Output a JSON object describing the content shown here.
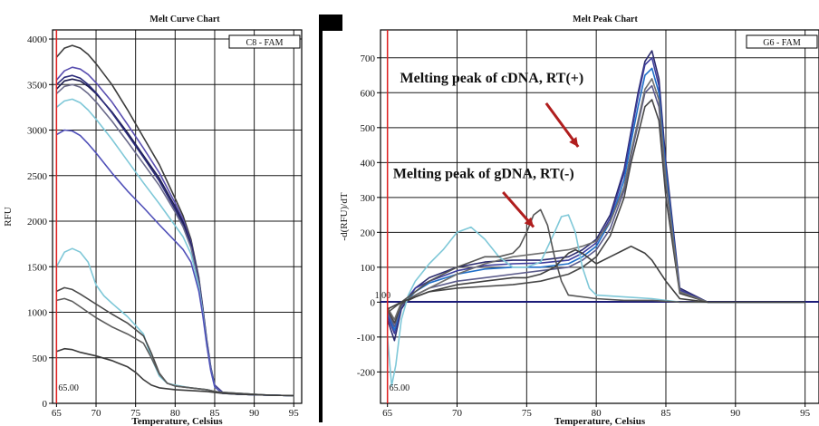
{
  "chart_data": [
    {
      "type": "line",
      "title": "Melt Curve Chart",
      "xlabel": "Temperature, Celsius",
      "ylabel": "RFU",
      "legend_label": "C8 - FAM",
      "marker_label": "65.00",
      "marker_x": 65,
      "xlim": [
        64.5,
        96
      ],
      "ylim": [
        0,
        4100
      ],
      "x_ticks": [
        65,
        70,
        75,
        80,
        85,
        90,
        95
      ],
      "y_ticks": [
        0,
        500,
        1000,
        1500,
        2000,
        2500,
        3000,
        3500,
        4000
      ],
      "grid": true,
      "series": [
        {
          "color": "#3c3c3c",
          "x": [
            65,
            66,
            67,
            68,
            69,
            70,
            72,
            74,
            76,
            78,
            80,
            81,
            82,
            83,
            83.5,
            84,
            84.5,
            85,
            86,
            88,
            90,
            92,
            95
          ],
          "y": [
            3800,
            3900,
            3930,
            3900,
            3830,
            3730,
            3500,
            3220,
            2920,
            2620,
            2250,
            2060,
            1800,
            1380,
            1050,
            700,
            400,
            200,
            120,
            100,
            95,
            90,
            85
          ]
        },
        {
          "color": "#5a4fb0",
          "x": [
            65,
            66,
            67,
            68,
            69,
            70,
            72,
            74,
            76,
            78,
            80,
            81,
            82,
            83,
            83.5,
            84,
            84.5,
            85,
            86,
            88,
            90,
            92,
            95
          ],
          "y": [
            3550,
            3650,
            3690,
            3670,
            3610,
            3520,
            3310,
            3060,
            2800,
            2530,
            2200,
            2020,
            1770,
            1360,
            1040,
            690,
            400,
            200,
            120,
            100,
            95,
            90,
            85
          ]
        },
        {
          "color": "#1e1e50",
          "x": [
            65,
            66,
            67,
            68,
            69,
            70,
            72,
            74,
            76,
            78,
            80,
            81,
            82,
            83,
            83.5,
            84,
            84.5,
            85,
            86,
            88,
            90,
            92,
            95
          ],
          "y": [
            3450,
            3540,
            3560,
            3540,
            3480,
            3400,
            3200,
            2970,
            2720,
            2470,
            2160,
            1990,
            1750,
            1340,
            1030,
            680,
            390,
            190,
            115,
            100,
            95,
            90,
            85
          ]
        },
        {
          "color": "#2b2b7a",
          "x": [
            65,
            66,
            67,
            68,
            69,
            70,
            72,
            74,
            76,
            78,
            80,
            81,
            82,
            83,
            83.5,
            84,
            84.5,
            85,
            86,
            88,
            90,
            92,
            95
          ],
          "y": [
            3500,
            3580,
            3600,
            3570,
            3500,
            3410,
            3190,
            2950,
            2700,
            2440,
            2130,
            1960,
            1730,
            1330,
            1020,
            670,
            390,
            190,
            115,
            100,
            95,
            90,
            85
          ]
        },
        {
          "color": "#6a6a8a",
          "x": [
            65,
            66,
            67,
            68,
            69,
            70,
            72,
            74,
            76,
            78,
            80,
            81,
            82,
            83,
            83.5,
            84,
            84.5,
            85,
            86,
            88,
            90,
            92,
            95
          ],
          "y": [
            3400,
            3480,
            3500,
            3470,
            3400,
            3310,
            3100,
            2870,
            2630,
            2390,
            2100,
            1940,
            1710,
            1320,
            1010,
            660,
            380,
            185,
            110,
            100,
            95,
            90,
            85
          ]
        },
        {
          "color": "#7fc8d8",
          "x": [
            65,
            66,
            67,
            68,
            69,
            70,
            72,
            74,
            76,
            78,
            80,
            81,
            82,
            83,
            83.5,
            84,
            84.5,
            85,
            86,
            88,
            90,
            92,
            95
          ],
          "y": [
            3250,
            3320,
            3340,
            3300,
            3220,
            3120,
            2900,
            2660,
            2420,
            2190,
            1950,
            1830,
            1640,
            1280,
            990,
            650,
            370,
            180,
            110,
            100,
            95,
            90,
            85
          ]
        },
        {
          "color": "#5050b8",
          "x": [
            65,
            66,
            67,
            68,
            69,
            70,
            72,
            74,
            76,
            78,
            80,
            81,
            82,
            83,
            83.5,
            84,
            84.5,
            85,
            86,
            88,
            90,
            92,
            95
          ],
          "y": [
            2950,
            3000,
            2990,
            2940,
            2850,
            2750,
            2530,
            2330,
            2150,
            1960,
            1780,
            1690,
            1550,
            1230,
            960,
            640,
            360,
            180,
            110,
            100,
            95,
            90,
            85
          ]
        },
        {
          "color": "#7fc8d8",
          "x": [
            65,
            66,
            67,
            68,
            69,
            70,
            71,
            72,
            74,
            76,
            77,
            78,
            79,
            80,
            82,
            84,
            85,
            86,
            88,
            90,
            92,
            95
          ],
          "y": [
            1500,
            1660,
            1700,
            1660,
            1550,
            1300,
            1180,
            1100,
            950,
            760,
            500,
            300,
            220,
            200,
            170,
            150,
            130,
            120,
            110,
            100,
            90,
            85
          ]
        },
        {
          "color": "#4a4a4a",
          "x": [
            65,
            66,
            67,
            68,
            70,
            72,
            74,
            76,
            77,
            78,
            79,
            80,
            82,
            84,
            85,
            86,
            88,
            90,
            92,
            95
          ],
          "y": [
            1230,
            1270,
            1250,
            1200,
            1090,
            980,
            880,
            740,
            550,
            330,
            220,
            190,
            170,
            150,
            130,
            120,
            110,
            100,
            90,
            85
          ]
        },
        {
          "color": "#5c5c5c",
          "x": [
            65,
            66,
            67,
            68,
            70,
            72,
            74,
            76,
            77,
            78,
            79,
            80,
            82,
            84,
            85,
            86,
            88,
            90,
            92,
            95
          ],
          "y": [
            1130,
            1150,
            1120,
            1060,
            940,
            840,
            760,
            660,
            500,
            320,
            220,
            190,
            170,
            150,
            130,
            120,
            110,
            100,
            90,
            85
          ]
        },
        {
          "color": "#3a3a3a",
          "x": [
            65,
            66,
            67,
            68,
            70,
            72,
            74,
            75,
            76,
            77,
            78,
            79,
            80,
            82,
            84,
            85,
            86,
            88,
            90,
            92,
            95
          ],
          "y": [
            570,
            600,
            590,
            560,
            520,
            470,
            400,
            340,
            260,
            200,
            170,
            160,
            150,
            140,
            130,
            120,
            110,
            100,
            95,
            90,
            85
          ]
        }
      ]
    },
    {
      "type": "line",
      "title": "Melt Peak Chart",
      "xlabel": "Temperature, Celsius",
      "ylabel": "-d(RFU)/dT",
      "legend_label": "G6 - FAM",
      "marker_label": "65.00",
      "marker_x": 65,
      "threshold_label": "1.00",
      "threshold_y": 1,
      "xlim": [
        64.5,
        96
      ],
      "ylim": [
        -290,
        780
      ],
      "x_ticks": [
        65,
        70,
        75,
        80,
        85,
        90,
        95
      ],
      "y_ticks": [
        -200,
        -100,
        0,
        100,
        200,
        300,
        400,
        500,
        600,
        700
      ],
      "grid": true,
      "annotations": [
        {
          "text": "Melting peak of cDNA, RT(+)",
          "x": 65.9,
          "y": 630,
          "arrow_from": [
            76.4,
            570
          ],
          "arrow_to": [
            78.7,
            445
          ]
        },
        {
          "text": "Melting peak of gDNA, RT(-)",
          "x": 65.4,
          "y": 355,
          "arrow_from": [
            73.3,
            315
          ],
          "arrow_to": [
            75.5,
            215
          ]
        }
      ],
      "series": [
        {
          "color": "#2b2b6e",
          "x": [
            65,
            65.5,
            66,
            67,
            68,
            70,
            72,
            74,
            76,
            78,
            79,
            80,
            81,
            82,
            82.5,
            83,
            83.5,
            84,
            84.5,
            85,
            86,
            88,
            90,
            95
          ],
          "y": [
            -50,
            -110,
            -20,
            40,
            70,
            100,
            115,
            120,
            120,
            130,
            150,
            180,
            250,
            380,
            490,
            600,
            690,
            720,
            640,
            400,
            40,
            0,
            0,
            0
          ]
        },
        {
          "color": "#3c3c9c",
          "x": [
            65,
            65.5,
            66,
            67,
            68,
            70,
            72,
            74,
            76,
            78,
            79,
            80,
            81,
            82,
            82.5,
            83,
            83.5,
            84,
            84.5,
            85,
            86,
            88,
            90,
            95
          ],
          "y": [
            -40,
            -90,
            -10,
            40,
            60,
            90,
            105,
            110,
            112,
            120,
            140,
            170,
            240,
            370,
            480,
            590,
            680,
            700,
            620,
            380,
            35,
            0,
            0,
            0
          ]
        },
        {
          "color": "#1e6ec8",
          "x": [
            65,
            65.5,
            66,
            67,
            68,
            70,
            72,
            74,
            76,
            78,
            79,
            80,
            81,
            82,
            82.5,
            83,
            83.5,
            84,
            84.5,
            85,
            86,
            88,
            90,
            95
          ],
          "y": [
            -30,
            -80,
            -10,
            30,
            55,
            80,
            95,
            100,
            100,
            110,
            130,
            160,
            230,
            350,
            460,
            560,
            650,
            670,
            600,
            370,
            30,
            0,
            0,
            0
          ]
        },
        {
          "color": "#5a5a8a",
          "x": [
            65,
            65.5,
            66,
            67,
            68,
            70,
            72,
            74,
            76,
            78,
            79,
            80,
            81,
            82,
            82.5,
            83,
            83.5,
            84,
            84.5,
            85,
            86,
            88,
            90,
            95
          ],
          "y": [
            -25,
            -70,
            -10,
            20,
            40,
            60,
            70,
            80,
            90,
            100,
            120,
            150,
            210,
            320,
            420,
            510,
            600,
            620,
            560,
            340,
            30,
            0,
            0,
            0
          ]
        },
        {
          "color": "#484848",
          "x": [
            65,
            65.5,
            66,
            67,
            68,
            70,
            72,
            74,
            76,
            78,
            79,
            80,
            81,
            82,
            82.5,
            83,
            83.5,
            84,
            84.5,
            85,
            86,
            88,
            90,
            95
          ],
          "y": [
            -20,
            -60,
            -5,
            15,
            30,
            40,
            45,
            50,
            60,
            80,
            100,
            130,
            190,
            300,
            400,
            480,
            560,
            580,
            520,
            300,
            25,
            0,
            0,
            0
          ]
        },
        {
          "color": "#6e6e6e",
          "x": [
            65,
            65.5,
            66,
            67,
            68,
            70,
            72,
            74,
            76,
            78,
            79,
            80,
            81,
            82,
            82.5,
            83,
            83.5,
            84,
            84.5,
            85,
            86,
            88,
            90,
            95
          ],
          "y": [
            -15,
            -50,
            0,
            20,
            40,
            80,
            110,
            130,
            140,
            150,
            160,
            175,
            230,
            330,
            430,
            520,
            610,
            640,
            580,
            350,
            30,
            0,
            0,
            0
          ]
        },
        {
          "color": "#7fc8d8",
          "x": [
            65,
            65.3,
            65.6,
            66,
            66.5,
            67,
            68,
            69,
            70,
            71,
            72,
            73,
            74,
            75,
            76,
            77,
            77.5,
            78,
            78.5,
            79,
            79.5,
            80,
            82,
            84,
            86,
            88,
            95
          ],
          "y": [
            -100,
            -240,
            -180,
            -50,
            20,
            60,
            110,
            150,
            200,
            215,
            180,
            130,
            100,
            100,
            115,
            200,
            245,
            250,
            200,
            100,
            40,
            20,
            15,
            10,
            0,
            0,
            0
          ]
        },
        {
          "color": "#555555",
          "x": [
            65,
            66,
            67,
            68,
            70,
            72,
            73,
            74,
            74.5,
            75,
            75.5,
            76,
            76.5,
            77,
            77.5,
            78,
            80,
            82,
            84,
            86,
            88,
            95
          ],
          "y": [
            -30,
            0,
            30,
            60,
            100,
            130,
            130,
            140,
            160,
            200,
            250,
            265,
            220,
            130,
            60,
            20,
            10,
            5,
            5,
            0,
            0,
            0
          ]
        },
        {
          "color": "#3f3f3f",
          "x": [
            65,
            66,
            68,
            70,
            72,
            74,
            75,
            76,
            77,
            77.5,
            78,
            78.5,
            79,
            80,
            81,
            82,
            82.5,
            83,
            83.5,
            84,
            84.5,
            85,
            86,
            88,
            95
          ],
          "y": [
            -20,
            0,
            30,
            50,
            60,
            70,
            70,
            80,
            100,
            120,
            140,
            150,
            140,
            110,
            130,
            150,
            160,
            150,
            140,
            120,
            90,
            60,
            10,
            0,
            0
          ]
        }
      ]
    }
  ]
}
